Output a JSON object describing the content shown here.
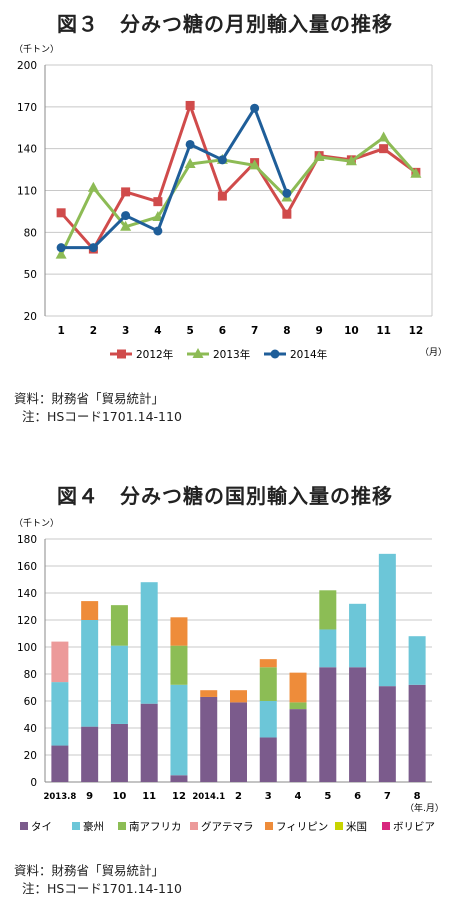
{
  "chart_data": [
    {
      "type": "line",
      "title": "図３　分みつ糖の月別輸入量の推移",
      "ylabel": "（千トン）",
      "xlabel": "（月）",
      "ylim": [
        20,
        200
      ],
      "yticks": [
        20,
        50,
        80,
        110,
        140,
        170,
        200
      ],
      "categories": [
        "1",
        "2",
        "3",
        "4",
        "5",
        "6",
        "7",
        "8",
        "9",
        "10",
        "11",
        "12"
      ],
      "grid": true,
      "legend": "bottom",
      "series": [
        {
          "name": "2012年",
          "color": "#d04b4b",
          "marker": "square",
          "values": [
            94,
            68,
            109,
            102,
            171,
            106,
            130,
            93,
            135,
            132,
            140,
            123
          ]
        },
        {
          "name": "2013年",
          "color": "#8dbb55",
          "marker": "triangle",
          "values": [
            64,
            112,
            84,
            91,
            129,
            132,
            128,
            105,
            134,
            131,
            148,
            122
          ]
        },
        {
          "name": "2014年",
          "color": "#1f5e99",
          "marker": "circle",
          "values": [
            69,
            69,
            92,
            81,
            143,
            132,
            169,
            108,
            null,
            null,
            null,
            null
          ]
        }
      ]
    },
    {
      "type": "bar",
      "stacked": true,
      "title": "図４　分みつ糖の国別輸入量の推移",
      "ylabel": "（千トン）",
      "xlabel": "（年.月）",
      "ylim": [
        0,
        180
      ],
      "yticks": [
        0,
        20,
        40,
        60,
        80,
        100,
        120,
        140,
        160,
        180
      ],
      "categories": [
        "2013.8",
        "9",
        "10",
        "11",
        "12",
        "2014.1",
        "2",
        "3",
        "4",
        "5",
        "6",
        "7",
        "8"
      ],
      "grid": true,
      "legend": "bottom",
      "series": [
        {
          "name": "タイ",
          "color": "#7b5b8c",
          "values": [
            27,
            41,
            43,
            58,
            5,
            63,
            59,
            33,
            54,
            85,
            85,
            71,
            72
          ]
        },
        {
          "name": "豪州",
          "color": "#6cc6d8",
          "values": [
            47,
            79,
            58,
            90,
            67,
            0,
            0,
            27,
            0,
            28,
            47,
            98,
            36
          ]
        },
        {
          "name": "南アフリカ",
          "color": "#8cbd55",
          "values": [
            0,
            0,
            30,
            0,
            29,
            0,
            0,
            25,
            5,
            29,
            0,
            0,
            0
          ]
        },
        {
          "name": "グアテマラ",
          "color": "#ec9a9a",
          "values": [
            30,
            0,
            0,
            0,
            0,
            0,
            0,
            0,
            0,
            0,
            0,
            0,
            0
          ]
        },
        {
          "name": "フィリピン",
          "color": "#ee8c3a",
          "values": [
            0,
            14,
            0,
            0,
            21,
            5,
            9,
            6,
            22,
            0,
            0,
            0,
            0
          ]
        },
        {
          "name": "米国",
          "color": "#c8d400",
          "values": [
            0,
            0,
            0,
            0,
            0,
            0,
            0,
            0,
            0,
            0,
            0,
            0,
            0
          ]
        },
        {
          "name": "ボリビア",
          "color": "#d8267e",
          "values": [
            0,
            0,
            0,
            0,
            0,
            0,
            0,
            0,
            0,
            0,
            0,
            0,
            0
          ]
        }
      ]
    }
  ],
  "sources": [
    {
      "label": "資料：財務省「貿易統計」",
      "note": "注：HSコード1701.14-110"
    },
    {
      "label": "資料：財務省「貿易統計」",
      "note": "注：HSコード1701.14-110"
    }
  ]
}
